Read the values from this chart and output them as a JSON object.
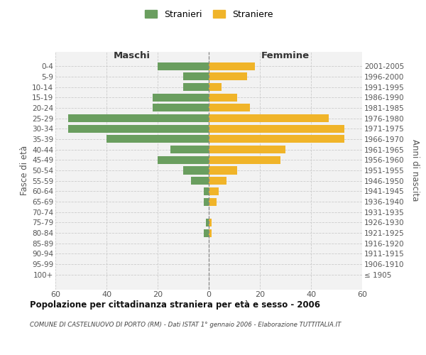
{
  "age_groups": [
    "0-4",
    "5-9",
    "10-14",
    "15-19",
    "20-24",
    "25-29",
    "30-34",
    "35-39",
    "40-44",
    "45-49",
    "50-54",
    "55-59",
    "60-64",
    "65-69",
    "70-74",
    "75-79",
    "80-84",
    "85-89",
    "90-94",
    "95-99",
    "100+"
  ],
  "birth_years": [
    "2001-2005",
    "1996-2000",
    "1991-1995",
    "1986-1990",
    "1981-1985",
    "1976-1980",
    "1971-1975",
    "1966-1970",
    "1961-1965",
    "1956-1960",
    "1951-1955",
    "1946-1950",
    "1941-1945",
    "1936-1940",
    "1931-1935",
    "1926-1930",
    "1921-1925",
    "1916-1920",
    "1911-1915",
    "1906-1910",
    "≤ 1905"
  ],
  "males": [
    20,
    10,
    10,
    22,
    22,
    55,
    55,
    40,
    15,
    20,
    10,
    7,
    2,
    2,
    0,
    1,
    2,
    0,
    0,
    0,
    0
  ],
  "females": [
    18,
    15,
    5,
    11,
    16,
    47,
    53,
    53,
    30,
    28,
    11,
    7,
    4,
    3,
    0,
    1,
    1,
    0,
    0,
    0,
    0
  ],
  "male_color": "#6a9e5f",
  "female_color": "#f0b429",
  "background_color": "#f2f2f2",
  "grid_color": "#cccccc",
  "title": "Popolazione per cittadinanza straniera per età e sesso - 2006",
  "subtitle": "COMUNE DI CASTELNUOVO DI PORTO (RM) - Dati ISTAT 1° gennaio 2006 - Elaborazione TUTTITALIA.IT",
  "xlabel_left": "Maschi",
  "xlabel_right": "Femmine",
  "ylabel_left": "Fasce di età",
  "ylabel_right": "Anni di nascita",
  "legend_males": "Stranieri",
  "legend_females": "Straniere",
  "xlim": 60
}
